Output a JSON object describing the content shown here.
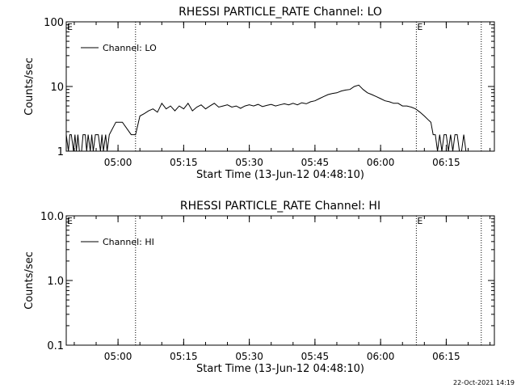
{
  "footer": {
    "date_stamp": "22-Oct-2021 14:19"
  },
  "chart_data": [
    {
      "type": "line",
      "title": "RHESSI PARTICLE_RATE Channel: LO",
      "xlabel": "Start Time (13-Jun-12 04:48:10)",
      "ylabel": "Counts/sec",
      "y_scale": "log",
      "ylim": [
        1,
        100
      ],
      "y_ticks": [
        1,
        10,
        100
      ],
      "y_tick_labels": [
        "1",
        "10",
        "100"
      ],
      "xlim": [
        "04:48:10",
        "06:26:00"
      ],
      "x_ticks": [
        "05:00",
        "05:15",
        "05:30",
        "05:45",
        "06:00",
        "06:15"
      ],
      "legend": {
        "position": "top-left",
        "entries": [
          "Channel: LO"
        ]
      },
      "event_markers": [
        {
          "time": "05:04:00",
          "label": ""
        },
        {
          "time": "06:08:10",
          "label": "E"
        },
        {
          "time": "06:23:00",
          "label": ""
        }
      ],
      "corner_label": "E",
      "series": [
        {
          "name": "Channel: LO",
          "x": [
            "04:48:10",
            "04:48:40",
            "04:49:00",
            "04:49:20",
            "04:49:50",
            "04:50:10",
            "04:50:30",
            "04:50:50",
            "04:51:10",
            "04:51:40",
            "04:52:00",
            "04:52:30",
            "04:52:50",
            "04:53:10",
            "04:53:40",
            "04:54:00",
            "04:54:20",
            "04:54:50",
            "04:55:10",
            "04:55:30",
            "04:56:00",
            "04:56:20",
            "04:56:40",
            "04:57:10",
            "04:57:30",
            "04:58:00",
            "04:59:30",
            "05:01:00",
            "05:03:00",
            "05:04:00",
            "05:05:00",
            "05:06:00",
            "05:07:00",
            "05:08:00",
            "05:09:00",
            "05:10:00",
            "05:11:00",
            "05:12:00",
            "05:13:00",
            "05:14:00",
            "05:15:00",
            "05:16:00",
            "05:17:00",
            "05:18:00",
            "05:19:00",
            "05:20:00",
            "05:21:00",
            "05:22:00",
            "05:23:00",
            "05:24:00",
            "05:25:00",
            "05:26:00",
            "05:27:00",
            "05:28:00",
            "05:29:00",
            "05:30:00",
            "05:31:00",
            "05:32:00",
            "05:33:00",
            "05:34:00",
            "05:35:00",
            "05:36:00",
            "05:37:00",
            "05:38:00",
            "05:39:00",
            "05:40:00",
            "05:41:00",
            "05:42:00",
            "05:43:00",
            "05:44:00",
            "05:45:00",
            "05:46:00",
            "05:47:00",
            "05:48:00",
            "05:49:00",
            "05:50:00",
            "05:51:00",
            "05:52:00",
            "05:53:00",
            "05:54:00",
            "05:55:00",
            "05:56:00",
            "05:57:00",
            "05:58:00",
            "05:59:00",
            "06:00:00",
            "06:01:00",
            "06:02:00",
            "06:03:00",
            "06:04:00",
            "06:05:00",
            "06:06:00",
            "06:07:00",
            "06:08:00",
            "06:09:00",
            "06:10:00",
            "06:11:00",
            "06:11:30",
            "06:12:00",
            "06:12:30",
            "06:13:00",
            "06:13:30",
            "06:14:00",
            "06:14:30",
            "06:15:00",
            "06:15:30",
            "06:16:00",
            "06:16:30",
            "06:17:00",
            "06:17:30",
            "06:18:00",
            "06:18:30",
            "06:19:00",
            "06:19:30",
            "06:20:00"
          ],
          "y": [
            1.8,
            1.0,
            1.8,
            1.8,
            1.0,
            1.8,
            1.0,
            1.8,
            1.0,
            1.0,
            1.8,
            1.8,
            1.0,
            1.8,
            1.0,
            1.8,
            1.0,
            1.8,
            1.8,
            1.8,
            1.0,
            1.8,
            1.0,
            1.8,
            1.0,
            1.8,
            2.8,
            2.8,
            1.8,
            1.8,
            3.5,
            3.8,
            4.2,
            4.5,
            4.0,
            5.5,
            4.5,
            5.0,
            4.2,
            5.0,
            4.5,
            5.5,
            4.2,
            4.8,
            5.2,
            4.5,
            5.0,
            5.5,
            4.8,
            5.0,
            5.2,
            4.8,
            5.0,
            4.6,
            5.0,
            5.2,
            5.0,
            5.3,
            4.9,
            5.1,
            5.3,
            5.0,
            5.2,
            5.4,
            5.2,
            5.5,
            5.2,
            5.6,
            5.4,
            5.8,
            6.0,
            6.5,
            7.0,
            7.5,
            7.8,
            8.0,
            8.5,
            8.8,
            9.0,
            10.0,
            10.5,
            9.0,
            8.0,
            7.5,
            7.0,
            6.5,
            6.0,
            5.8,
            5.5,
            5.5,
            5.0,
            5.0,
            4.8,
            4.5,
            4.0,
            3.5,
            3.0,
            2.8,
            1.8,
            1.8,
            1.0,
            1.8,
            1.0,
            1.8,
            1.8,
            1.0,
            1.8,
            1.0,
            1.8,
            1.8,
            1.0,
            1.0,
            1.8,
            1.0,
            1.0
          ]
        }
      ]
    },
    {
      "type": "line",
      "title": "RHESSI PARTICLE_RATE Channel: HI",
      "xlabel": "Start Time (13-Jun-12 04:48:10)",
      "ylabel": "Counts/sec",
      "y_scale": "log",
      "ylim": [
        0.1,
        10.0
      ],
      "y_ticks": [
        0.1,
        1.0,
        10.0
      ],
      "y_tick_labels": [
        "0.1",
        "1.0",
        "10.0"
      ],
      "xlim": [
        "04:48:10",
        "06:26:00"
      ],
      "x_ticks": [
        "05:00",
        "05:15",
        "05:30",
        "05:45",
        "06:00",
        "06:15"
      ],
      "legend": {
        "position": "top-left",
        "entries": [
          "Channel: HI"
        ]
      },
      "event_markers": [
        {
          "time": "05:04:00",
          "label": ""
        },
        {
          "time": "06:08:10",
          "label": "E"
        },
        {
          "time": "06:23:00",
          "label": ""
        }
      ],
      "corner_label": "E",
      "series": [
        {
          "name": "Channel: HI",
          "x": [],
          "y": []
        }
      ]
    }
  ]
}
